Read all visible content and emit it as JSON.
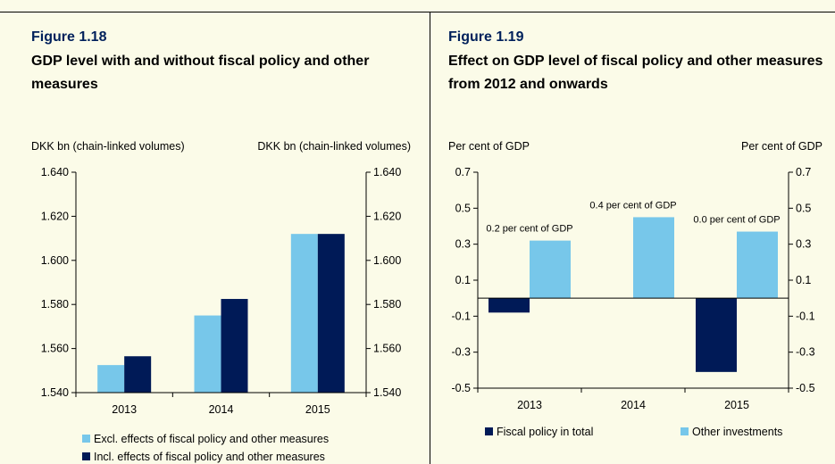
{
  "figures": [
    {
      "number": "Figure 1.18",
      "title": "GDP level with and without fiscal policy and other measures"
    },
    {
      "number": "Figure 1.19",
      "title": "Effect on GDP level of fiscal policy and other measures from 2012 and onwards"
    }
  ],
  "chart_data": [
    {
      "type": "bar",
      "categories": [
        "2013",
        "2014",
        "2015"
      ],
      "series": [
        {
          "name": "Excl. effects of fiscal policy and other measures",
          "values": [
            1.5525,
            1.575,
            1.612
          ],
          "color": "#77c7ea"
        },
        {
          "name": "Incl. effects of fiscal policy and other measures",
          "values": [
            1.5565,
            1.5825,
            1.612
          ],
          "color": "#001a57"
        }
      ],
      "ylabel_left": "DKK bn (chain-linked volumes)",
      "ylabel_right": "DKK bn (chain-linked volumes)",
      "ylim": [
        1.54,
        1.64
      ],
      "yticks": [
        1.54,
        1.56,
        1.58,
        1.6,
        1.62,
        1.64
      ],
      "ytick_labels": [
        "1.540",
        "1.560",
        "1.580",
        "1.600",
        "1.620",
        "1.640"
      ],
      "legend_position": "bottom",
      "grid": false
    },
    {
      "type": "bar",
      "categories": [
        "2013",
        "2014",
        "2015"
      ],
      "series": [
        {
          "name": "Fiscal policy in total",
          "values": [
            -0.08,
            0.0,
            -0.41
          ],
          "color": "#001a57"
        },
        {
          "name": "Other investments",
          "values": [
            0.32,
            0.45,
            0.37
          ],
          "color": "#77c7ea"
        }
      ],
      "annotations": [
        "0.2 per cent of GDP",
        "0.4 per cent of GDP",
        "0.0 per cent of GDP"
      ],
      "ylabel_left": "Per cent of GDP",
      "ylabel_right": "Per cent of GDP",
      "ylim": [
        -0.5,
        0.7
      ],
      "yticks": [
        -0.5,
        -0.3,
        -0.1,
        0.1,
        0.3,
        0.5,
        0.7
      ],
      "ytick_labels": [
        "-0.5",
        "-0.3",
        "-0.1",
        "0.1",
        "0.3",
        "0.5",
        "0.7"
      ],
      "legend_position": "bottom",
      "grid": false
    }
  ]
}
